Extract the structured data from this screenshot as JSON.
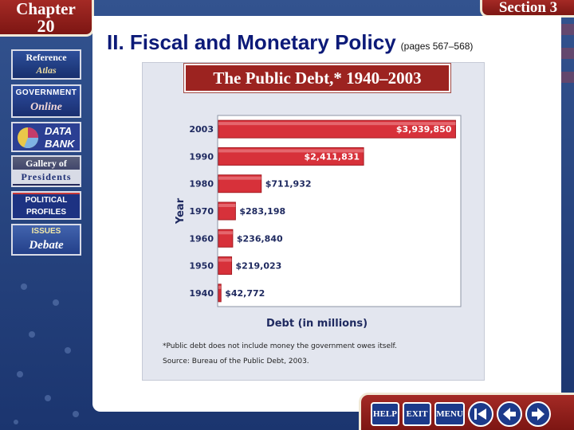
{
  "header": {
    "chapter_word": "Chapter",
    "chapter_number": "20",
    "section_label": "Section 3",
    "slide_title": "II. Fiscal and Monetary Policy",
    "slide_pages": "(pages 567–568)"
  },
  "sidebar": {
    "items": [
      {
        "line1": "Reference",
        "line2": "Atlas"
      },
      {
        "line1": "GOVERNMENT",
        "line2": "Online"
      },
      {
        "line1": "DATA",
        "line2": "BANK"
      },
      {
        "line1": "Gallery of",
        "line2": "Presidents"
      },
      {
        "line1": "POLITICAL",
        "line2": "PROFILES"
      },
      {
        "line1": "ISSUES",
        "line2": "Debate"
      }
    ]
  },
  "chart_data": {
    "type": "bar",
    "orientation": "horizontal",
    "title": "The Public Debt,* 1940–2003",
    "categories": [
      "2003",
      "1990",
      "1980",
      "1970",
      "1960",
      "1950",
      "1940"
    ],
    "values": [
      3939850,
      2411831,
      711932,
      283198,
      236840,
      219023,
      42772
    ],
    "value_labels": [
      "$3,939,850",
      "$2,411,831",
      "$711,932",
      "$283,198",
      "$236,840",
      "$219,023",
      "$42,772"
    ],
    "xlabel": "Debt (in millions)",
    "ylabel": "Year",
    "xlim": [
      0,
      4000000
    ],
    "grid": false,
    "bar_color": "#d7313a",
    "footnote": "*Public debt does not include money the government owes itself.",
    "source": "Source: Bureau of the Public Debt, 2003."
  },
  "nav": {
    "help": "HELP",
    "exit": "EXIT",
    "menu": "MENU"
  },
  "colors": {
    "title_blue": "#0c1a78",
    "banner_red": "#9c2320",
    "nav_blue": "#1c3a8a"
  }
}
